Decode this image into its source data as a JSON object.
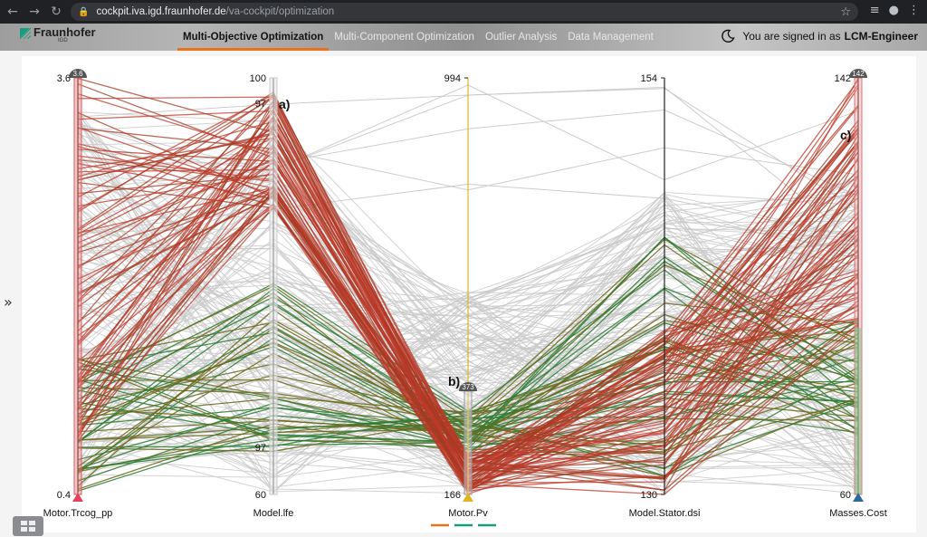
{
  "browser": {
    "url_host": "cockpit.iva.igd.fraunhofer.de",
    "url_path": "/va-cockpit/optimization"
  },
  "header": {
    "logo_text": "Fraunhofer",
    "logo_sub": "IGD",
    "tabs": [
      {
        "label": "Multi-Objective Optimization",
        "active": true
      },
      {
        "label": "Multi-Component Optimization",
        "active": false
      },
      {
        "label": "Outlier Analysis",
        "active": false
      },
      {
        "label": "Data Management",
        "active": false
      }
    ],
    "signed_in_prefix": "You are signed in as",
    "user": "LCM-Engineer"
  },
  "colors": {
    "accent": "#e8731a",
    "brand": "#179c7d",
    "red": "#c0392b",
    "olive": "#6b6a1f",
    "green": "#2e7d32",
    "gray": "#c8c8c8",
    "yellow": "#e3b320",
    "blue": "#2b6a9e"
  },
  "chart_data": {
    "type": "parallel-coordinates",
    "axes": [
      {
        "name": "Motor.Trcog_pp",
        "min": 0.4,
        "max": 3.6,
        "min_label": "0.4",
        "max_label": "3.6",
        "brush_label": "3.6",
        "marker": "red"
      },
      {
        "name": "Model.lfe",
        "min": 60,
        "max": 100,
        "min_label": "60",
        "max_label": "100",
        "tick_labels": [
          "97",
          "97"
        ],
        "annotation": "a)"
      },
      {
        "name": "Motor.Pv",
        "min": 166,
        "max": 994,
        "min_label": "166",
        "max_label": "994",
        "brush_label": "373",
        "annotation": "b)",
        "marker": "yellow"
      },
      {
        "name": "Model.Stator.dsi",
        "min": 130,
        "max": 154,
        "min_label": "130",
        "max_label": "154"
      },
      {
        "name": "Masses.Cost",
        "min": 60,
        "max": 142,
        "min_label": "60",
        "max_label": "142",
        "brush_label": "142",
        "annotation": "c)",
        "marker": "blue"
      }
    ],
    "legend_swatches": [
      "#e8731a",
      "#179c7d",
      "#179c7d"
    ]
  }
}
